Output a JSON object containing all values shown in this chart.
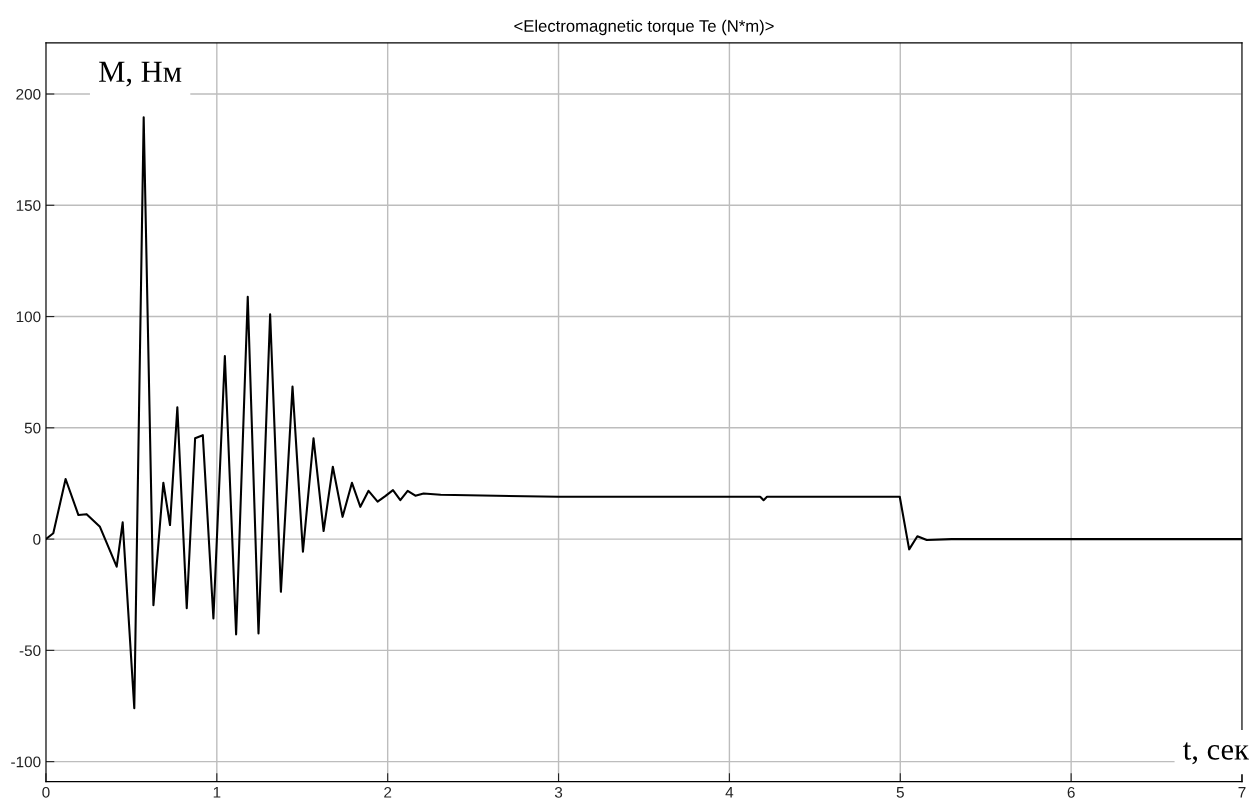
{
  "chart_data": {
    "type": "line",
    "title": "<Electromagnetic torque Te (N*m)>",
    "annotations": [
      "M, Нм",
      "t, сек"
    ],
    "x": [
      0,
      0.043,
      0.115,
      0.19,
      0.238,
      0.316,
      0.414,
      0.449,
      0.517,
      0.572,
      0.629,
      0.687,
      0.726,
      0.769,
      0.824,
      0.873,
      0.918,
      0.98,
      1.047,
      1.113,
      1.181,
      1.244,
      1.312,
      1.375,
      1.443,
      1.504,
      1.566,
      1.625,
      1.679,
      1.736,
      1.791,
      1.84,
      1.888,
      1.941,
      1.986,
      2.031,
      2.074,
      2.117,
      2.162,
      2.21,
      2.31,
      3.0,
      4.0,
      4.18,
      4.2,
      4.22,
      4.5,
      4.997,
      5.052,
      5.1,
      5.155,
      5.3,
      6.0,
      7.0
    ],
    "series": [
      {
        "color": "#000000",
        "values": [
          0,
          2.6,
          27,
          10.8,
          11.2,
          5.5,
          -12.4,
          7.5,
          -76,
          189.5,
          -29.7,
          25.3,
          6.3,
          59.2,
          -31.1,
          45.3,
          46.7,
          -35.7,
          82.3,
          -42.8,
          108.9,
          -42.4,
          101,
          -23.7,
          68.5,
          -5.7,
          45.3,
          3.6,
          32.5,
          10,
          25.3,
          14.5,
          21.7,
          16.8,
          19.3,
          22,
          17.5,
          21.7,
          19.5,
          20.5,
          19.9,
          19,
          19,
          19,
          17.5,
          19,
          19,
          19,
          -4.6,
          1.3,
          -0.4,
          0,
          0,
          0
        ]
      }
    ],
    "xlim": [
      0,
      7
    ],
    "ylim": [
      -109,
      223
    ],
    "xticks": [
      0,
      1,
      2,
      3,
      4,
      5,
      6,
      7
    ],
    "yticks": [
      -100,
      -50,
      0,
      50,
      100,
      150,
      200
    ],
    "grid": true,
    "legend": false,
    "marker": "none",
    "line_style": "solid"
  }
}
